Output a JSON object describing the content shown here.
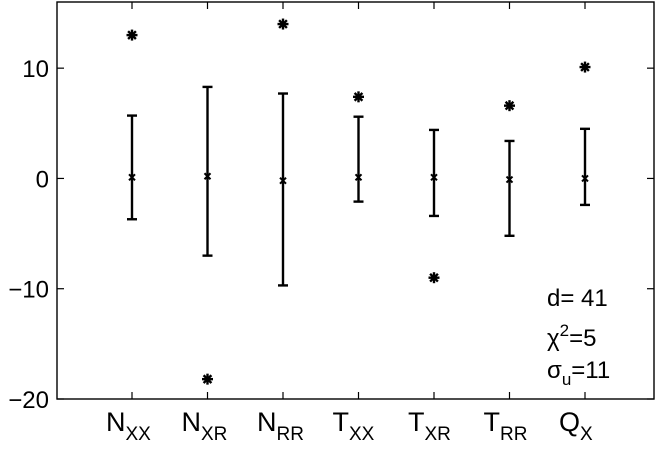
{
  "chart_data": {
    "type": "scatter",
    "title": "",
    "xlabel": "",
    "ylabel": "",
    "ylim": [
      -20,
      16
    ],
    "yticks": [
      -20,
      -10,
      0,
      10
    ],
    "grid": false,
    "categories": [
      {
        "base": "N",
        "sub": "XX"
      },
      {
        "base": "N",
        "sub": "XR"
      },
      {
        "base": "N",
        "sub": "RR"
      },
      {
        "base": "T",
        "sub": "XX"
      },
      {
        "base": "T",
        "sub": "XR"
      },
      {
        "base": "T",
        "sub": "RR"
      },
      {
        "base": "Q",
        "sub": "X"
      }
    ],
    "series": [
      {
        "marker": "x",
        "values": [
          0.1,
          0.2,
          -0.2,
          0.1,
          0.1,
          -0.1,
          0.0
        ]
      },
      {
        "marker": "errorbar",
        "lower": [
          -3.7,
          -7.0,
          -9.7,
          -2.1,
          -3.4,
          -5.2,
          -2.4
        ],
        "upper": [
          5.7,
          8.3,
          7.7,
          5.6,
          4.4,
          3.4,
          4.5
        ]
      },
      {
        "marker": "asterisk",
        "values": [
          13.0,
          -18.2,
          14.0,
          7.4,
          -9.0,
          6.6,
          10.1
        ]
      }
    ],
    "annotations": [
      {
        "base": "d= 41",
        "sup": "",
        "sub": "",
        "tail": ""
      },
      {
        "base": "χ",
        "sup": "2",
        "sub": "",
        "tail": "=5"
      },
      {
        "base": "σ",
        "sup": "",
        "sub": "u",
        "tail": "=11"
      }
    ]
  }
}
